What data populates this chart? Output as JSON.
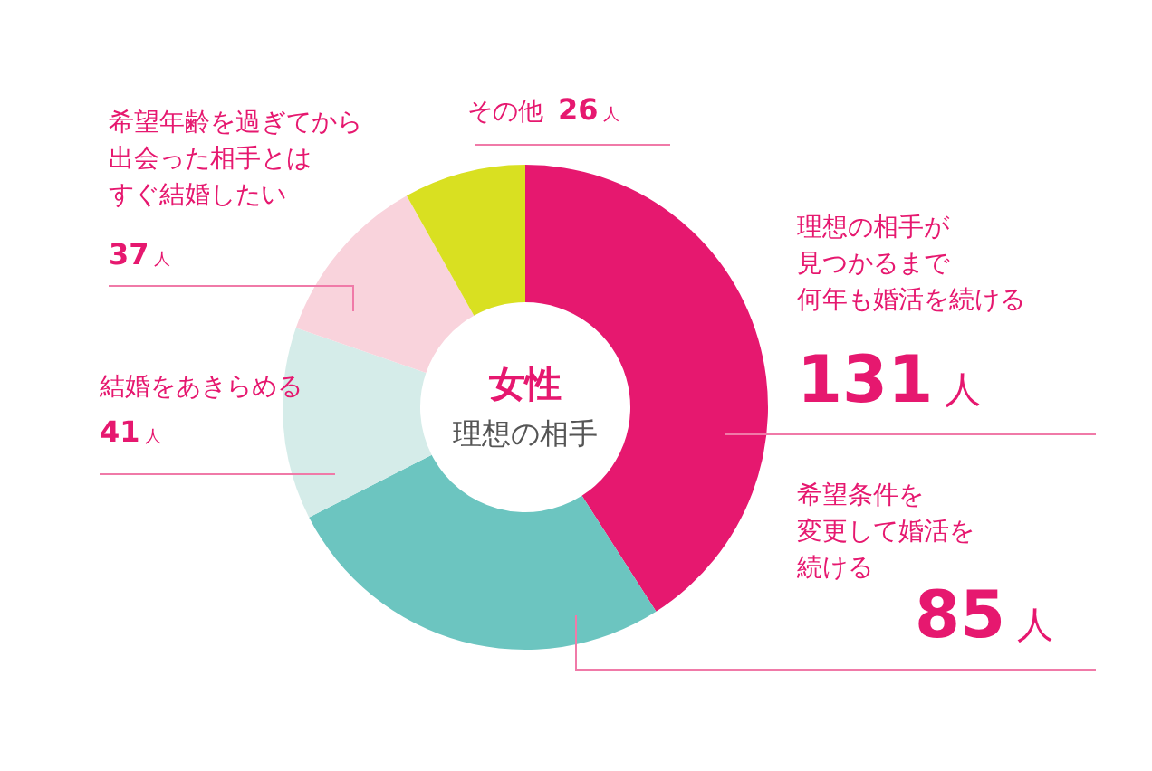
{
  "chart_data": {
    "type": "donut",
    "title": "女性",
    "subtitle": "理想の相手",
    "categories": [
      "理想の相手が見つかるまで何年も婚活を続ける",
      "希望条件を変更して婚活を続ける",
      "結婚をあきらめる",
      "希望年齢を過ぎてから出会った相手とはすぐ結婚したい",
      "その他"
    ],
    "values": [
      131,
      85,
      41,
      37,
      26
    ],
    "value_labels": [
      "131 人",
      "85 人",
      "41 人",
      "37 人",
      "26 人"
    ],
    "colors": [
      "#e6186f",
      "#6cc5c0",
      "#d5ece9",
      "#f9d3dc",
      "#d9e021"
    ]
  }
}
